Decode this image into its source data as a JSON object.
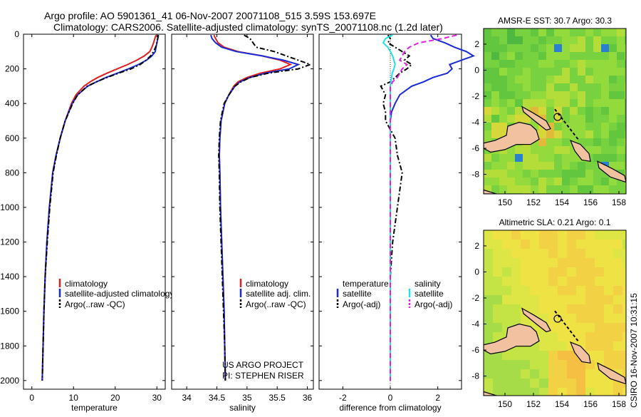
{
  "header": {
    "line1": "Argo profile: AO 5901361_41 06-Nov-2007 20071108_515 3.59S 153.697E",
    "line2": "Climatology: CARS2006. Satellite-adjusted climatology: synTS_20071108.nc (1.2d later)"
  },
  "side_label": "CSIRO 16-Nov-2007 10:31:15",
  "colors": {
    "climatology": "#e02020",
    "satellite": "#1a2ad8",
    "argo": "#000000",
    "sat_salinity": "#22e0e8",
    "argo_adj_salinity": "#e020e0",
    "land": "#f2c2a0"
  },
  "chart_data": [
    {
      "id": "temperature",
      "type": "line",
      "xlabel": "temperature",
      "ylabel": "",
      "xlim": [
        -2,
        32
      ],
      "ylim": [
        2050,
        0
      ],
      "xticks": [
        0,
        10,
        20,
        30
      ],
      "yticks": [
        0,
        200,
        400,
        600,
        800,
        1000,
        1200,
        1400,
        1600,
        1800,
        2000
      ],
      "depth": [
        5,
        25,
        50,
        75,
        100,
        125,
        150,
        175,
        200,
        225,
        250,
        275,
        300,
        350,
        400,
        500,
        600,
        700,
        800,
        1000,
        1200,
        1400,
        1600,
        1800,
        2000
      ],
      "series": [
        {
          "name": "climatology",
          "values": [
            29.8,
            29.5,
            29.2,
            28.8,
            28.3,
            27.0,
            25.2,
            23.0,
            20.5,
            18.0,
            15.8,
            14.0,
            12.5,
            10.6,
            9.5,
            8.0,
            6.8,
            5.8,
            5.0,
            4.2,
            3.6,
            3.2,
            2.9,
            2.7,
            2.5
          ]
        },
        {
          "name": "satellite-adjusted climatology",
          "values": [
            30.4,
            30.2,
            30.0,
            29.8,
            29.6,
            28.8,
            27.5,
            25.6,
            23.2,
            20.5,
            17.8,
            15.5,
            13.4,
            11.0,
            9.7,
            8.0,
            6.8,
            5.8,
            5.0,
            4.2,
            3.6,
            3.2,
            2.9,
            2.7,
            2.5
          ]
        },
        {
          "name": "Argo(..raw -QC)",
          "values": [
            30.3,
            30.2,
            30.0,
            29.7,
            29.2,
            28.5,
            27.4,
            26.0,
            23.8,
            20.8,
            18.0,
            15.5,
            13.3,
            11.0,
            9.8,
            8.0,
            6.8,
            5.9,
            5.1,
            4.3,
            3.7,
            3.2,
            2.9,
            2.7,
            2.5
          ]
        }
      ],
      "legend": [
        "climatology",
        "satellite-adjusted climatology",
        "Argo(..raw -QC)"
      ]
    },
    {
      "id": "salinity",
      "type": "line",
      "xlabel": "salinity",
      "ylabel": "",
      "xlim": [
        33.75,
        36.1
      ],
      "ylim": [
        2050,
        0
      ],
      "xticks": [
        34,
        34.5,
        35,
        35.5,
        36
      ],
      "yticks": [
        0,
        200,
        400,
        600,
        800,
        1000,
        1200,
        1400,
        1600,
        1800,
        2000
      ],
      "depth": [
        5,
        25,
        50,
        75,
        100,
        125,
        150,
        175,
        200,
        225,
        250,
        275,
        300,
        350,
        400,
        500,
        600,
        700,
        800,
        1000,
        1200,
        1400,
        1600,
        1800,
        2000
      ],
      "series": [
        {
          "name": "climatology",
          "values": [
            34.45,
            34.48,
            34.52,
            34.62,
            34.85,
            35.25,
            35.55,
            35.72,
            35.55,
            35.22,
            35.0,
            34.85,
            34.78,
            34.7,
            34.63,
            34.57,
            34.55,
            34.54,
            34.55,
            34.56,
            34.58,
            34.6,
            34.62,
            34.63,
            34.64
          ]
        },
        {
          "name": "satellite adj. clim.",
          "values": [
            34.4,
            34.42,
            34.48,
            34.58,
            34.82,
            35.25,
            35.6,
            35.85,
            35.7,
            35.3,
            35.05,
            34.88,
            34.8,
            34.7,
            34.63,
            34.57,
            34.55,
            34.54,
            34.55,
            34.56,
            34.58,
            34.6,
            34.62,
            34.63,
            34.64
          ]
        },
        {
          "name": "Argo(..raw -QC)",
          "values": [
            34.95,
            35.05,
            35.1,
            35.15,
            35.45,
            35.65,
            35.85,
            36.05,
            35.85,
            35.35,
            35.05,
            34.9,
            34.8,
            34.7,
            34.62,
            34.56,
            34.54,
            34.53,
            34.54,
            34.55,
            34.57,
            34.59,
            34.61,
            34.63,
            34.64
          ]
        }
      ],
      "legend": [
        "climatology",
        "satellite adj. clim.",
        "Argo(..raw -QC)"
      ],
      "annotations": [
        "US ARGO PROJECT",
        "PI: STEPHEN RISER"
      ]
    },
    {
      "id": "difference",
      "type": "line",
      "xlabel": "difference from climatology",
      "ylabel": "",
      "xlim": [
        -3,
        3
      ],
      "ylim": [
        2050,
        0
      ],
      "xticks": [
        -2,
        0,
        2
      ],
      "yticks": [
        0,
        200,
        400,
        600,
        800,
        1000,
        1200,
        1400,
        1600,
        1800,
        2000
      ],
      "zero_line": 0,
      "depth": [
        5,
        25,
        50,
        75,
        100,
        125,
        150,
        175,
        200,
        225,
        250,
        275,
        300,
        350,
        400,
        450,
        500,
        600,
        700,
        800,
        1000,
        1200,
        1400,
        1600,
        1800,
        2000
      ],
      "series": [
        {
          "name": "temperature satellite",
          "values": [
            1.7,
            1.8,
            2.3,
            2.7,
            3.2,
            3.5,
            3.0,
            2.5,
            2.6,
            2.4,
            1.8,
            1.4,
            0.9,
            0.4,
            0.2,
            0.05,
            0.0,
            0.0,
            0.0,
            0.0,
            0.0,
            0.0,
            0.0,
            0.0,
            0.0,
            0.0
          ]
        },
        {
          "name": "temperature Argo(-adj)",
          "values": [
            -0.1,
            0.0,
            -0.1,
            0.2,
            0.5,
            0.8,
            0.6,
            0.9,
            0.7,
            0.4,
            0.2,
            0.0,
            -0.4,
            -0.2,
            -0.3,
            -0.2,
            -0.2,
            0.2,
            0.3,
            0.5,
            0.3,
            0.1,
            0.0,
            0.0,
            0.0,
            0.0
          ]
        },
        {
          "name": "salinity satellite",
          "values": [
            0.1,
            -0.2,
            -0.3,
            -0.1,
            0.0,
            0.1,
            0.15,
            0.2,
            0.15,
            0.08,
            0.05,
            0.02,
            0.0,
            0.0,
            0.0,
            0.0,
            0.0,
            0.0,
            0.0,
            0.0,
            0.0,
            0.0,
            0.0,
            0.0,
            0.0,
            0.0
          ]
        },
        {
          "name": "salinity Argo(-adj)",
          "values": [
            2.8,
            2.2,
            1.2,
            0.8,
            0.6,
            0.5,
            0.4,
            0.7,
            0.5,
            0.4,
            0.3,
            0.1,
            0.0,
            0.0,
            0.0,
            0.0,
            0.0,
            0.0,
            0.0,
            0.0,
            0.0,
            0.0,
            0.0,
            0.0,
            0.0,
            0.0
          ]
        }
      ],
      "legend": {
        "temperature": [
          "satellite",
          "Argo(-adj)"
        ],
        "salinity": [
          "satellite",
          "Argo(-adj)"
        ]
      },
      "legend_headers": [
        "temperature",
        "salinity"
      ]
    },
    {
      "id": "sst_map",
      "type": "heatmap",
      "title": "AMSR-E SST: 30.7 Argo: 30.3",
      "xlim": [
        148.5,
        158.5
      ],
      "ylim": [
        -9.5,
        3.2
      ],
      "xticks": [
        150,
        152,
        154,
        156,
        158
      ],
      "yticks": [
        -8,
        -6,
        -4,
        -2,
        0,
        2
      ],
      "float_position": [
        153.697,
        -3.59
      ]
    },
    {
      "id": "sla_map",
      "type": "heatmap",
      "title": "Altimetric SLA: 0.21 Argo: 0.1",
      "xlim": [
        148.5,
        158.5
      ],
      "ylim": [
        -9.5,
        3.2
      ],
      "xticks": [
        150,
        152,
        154,
        156,
        158
      ],
      "yticks": [
        -8,
        -6,
        -4,
        -2,
        0,
        2
      ],
      "float_position": [
        153.697,
        -3.59
      ]
    }
  ]
}
